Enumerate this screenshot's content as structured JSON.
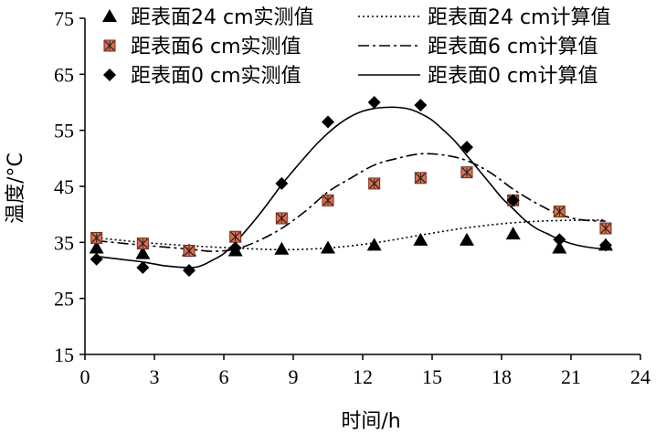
{
  "chart_data": {
    "type": "scatter",
    "xlabel": "时间/h",
    "ylabel": "温度/°C",
    "xlim": [
      0,
      24
    ],
    "ylim": [
      15,
      75
    ],
    "x_ticks": [
      0,
      3,
      6,
      9,
      12,
      15,
      18,
      21,
      24
    ],
    "y_ticks": [
      15,
      25,
      35,
      45,
      55,
      65,
      75
    ],
    "grid": false,
    "legend_position": "top",
    "colors": {
      "marker": "#000000",
      "marker_fill_6cm": "#e07050"
    },
    "x": [
      0.5,
      2.5,
      4.5,
      6.5,
      8.5,
      10.5,
      12.5,
      14.5,
      16.5,
      18.5,
      20.5,
      22.5
    ],
    "measured": [
      {
        "name": "距表面24 cm实测值",
        "marker": "triangle",
        "values": [
          34.0,
          33.0,
          33.5,
          33.5,
          33.8,
          34.0,
          34.5,
          35.4,
          35.4,
          36.5,
          34.0,
          34.5
        ]
      },
      {
        "name": "距表面6 cm实测值",
        "marker": "square-x",
        "values": [
          35.8,
          34.8,
          33.5,
          36.0,
          39.3,
          42.5,
          45.5,
          46.5,
          47.5,
          42.5,
          40.5,
          37.5
        ]
      },
      {
        "name": "距表面0 cm实测值",
        "marker": "diamond",
        "values": [
          32.0,
          30.5,
          30.0,
          34.0,
          45.5,
          56.5,
          60.0,
          59.5,
          52.0,
          42.5,
          35.5,
          34.5
        ]
      }
    ],
    "calculated": [
      {
        "name": "距表面24 cm计算值",
        "line_style": "dotted",
        "x": [
          0.5,
          2.5,
          4.5,
          6.5,
          8.5,
          10.5,
          12.5,
          14.5,
          16.5,
          18.5,
          20.5,
          22.5
        ],
        "values": [
          35.8,
          35.0,
          34.4,
          34.0,
          33.7,
          34.0,
          34.9,
          36.3,
          37.6,
          38.5,
          38.9,
          39.0
        ]
      },
      {
        "name": "距表面6 cm计算值",
        "line_style": "dash-dot",
        "x": [
          0.5,
          2.5,
          4.5,
          5.5,
          6.5,
          7.5,
          8.5,
          9.5,
          10.5,
          11.5,
          12.5,
          13.5,
          14.5,
          15.5,
          16.5,
          17.5,
          18.5,
          19.5,
          20.5,
          21.5,
          22.5
        ],
        "values": [
          35.3,
          34.5,
          33.8,
          33.4,
          33.8,
          35.3,
          37.5,
          40.5,
          44.0,
          46.5,
          48.8,
          50.0,
          50.8,
          50.6,
          49.6,
          47.5,
          44.5,
          42.0,
          40.0,
          39.0,
          38.8
        ]
      },
      {
        "name": "距表面0 cm计算值",
        "line_style": "solid",
        "x": [
          0.5,
          1.5,
          2.5,
          3.5,
          4.5,
          5.0,
          5.5,
          6.0,
          6.5,
          7.0,
          7.5,
          8.0,
          8.5,
          9.0,
          9.5,
          10.0,
          10.5,
          11.0,
          11.5,
          12.0,
          12.5,
          13.0,
          13.5,
          14.0,
          14.5,
          15.0,
          15.5,
          16.0,
          16.5,
          17.0,
          17.5,
          18.0,
          18.5,
          19.0,
          19.5,
          20.0,
          20.5,
          21.0,
          21.5,
          22.0,
          22.5
        ],
        "values": [
          32.5,
          32.0,
          31.5,
          30.8,
          30.5,
          30.8,
          31.8,
          33.0,
          35.0,
          37.3,
          39.8,
          42.5,
          45.3,
          47.8,
          50.2,
          52.5,
          54.5,
          56.2,
          57.5,
          58.4,
          58.9,
          59.1,
          59.1,
          58.8,
          58.0,
          56.8,
          55.0,
          53.0,
          50.5,
          48.0,
          45.5,
          43.0,
          41.0,
          39.0,
          37.5,
          36.5,
          35.5,
          34.8,
          34.3,
          34.0,
          33.8
        ]
      }
    ]
  }
}
